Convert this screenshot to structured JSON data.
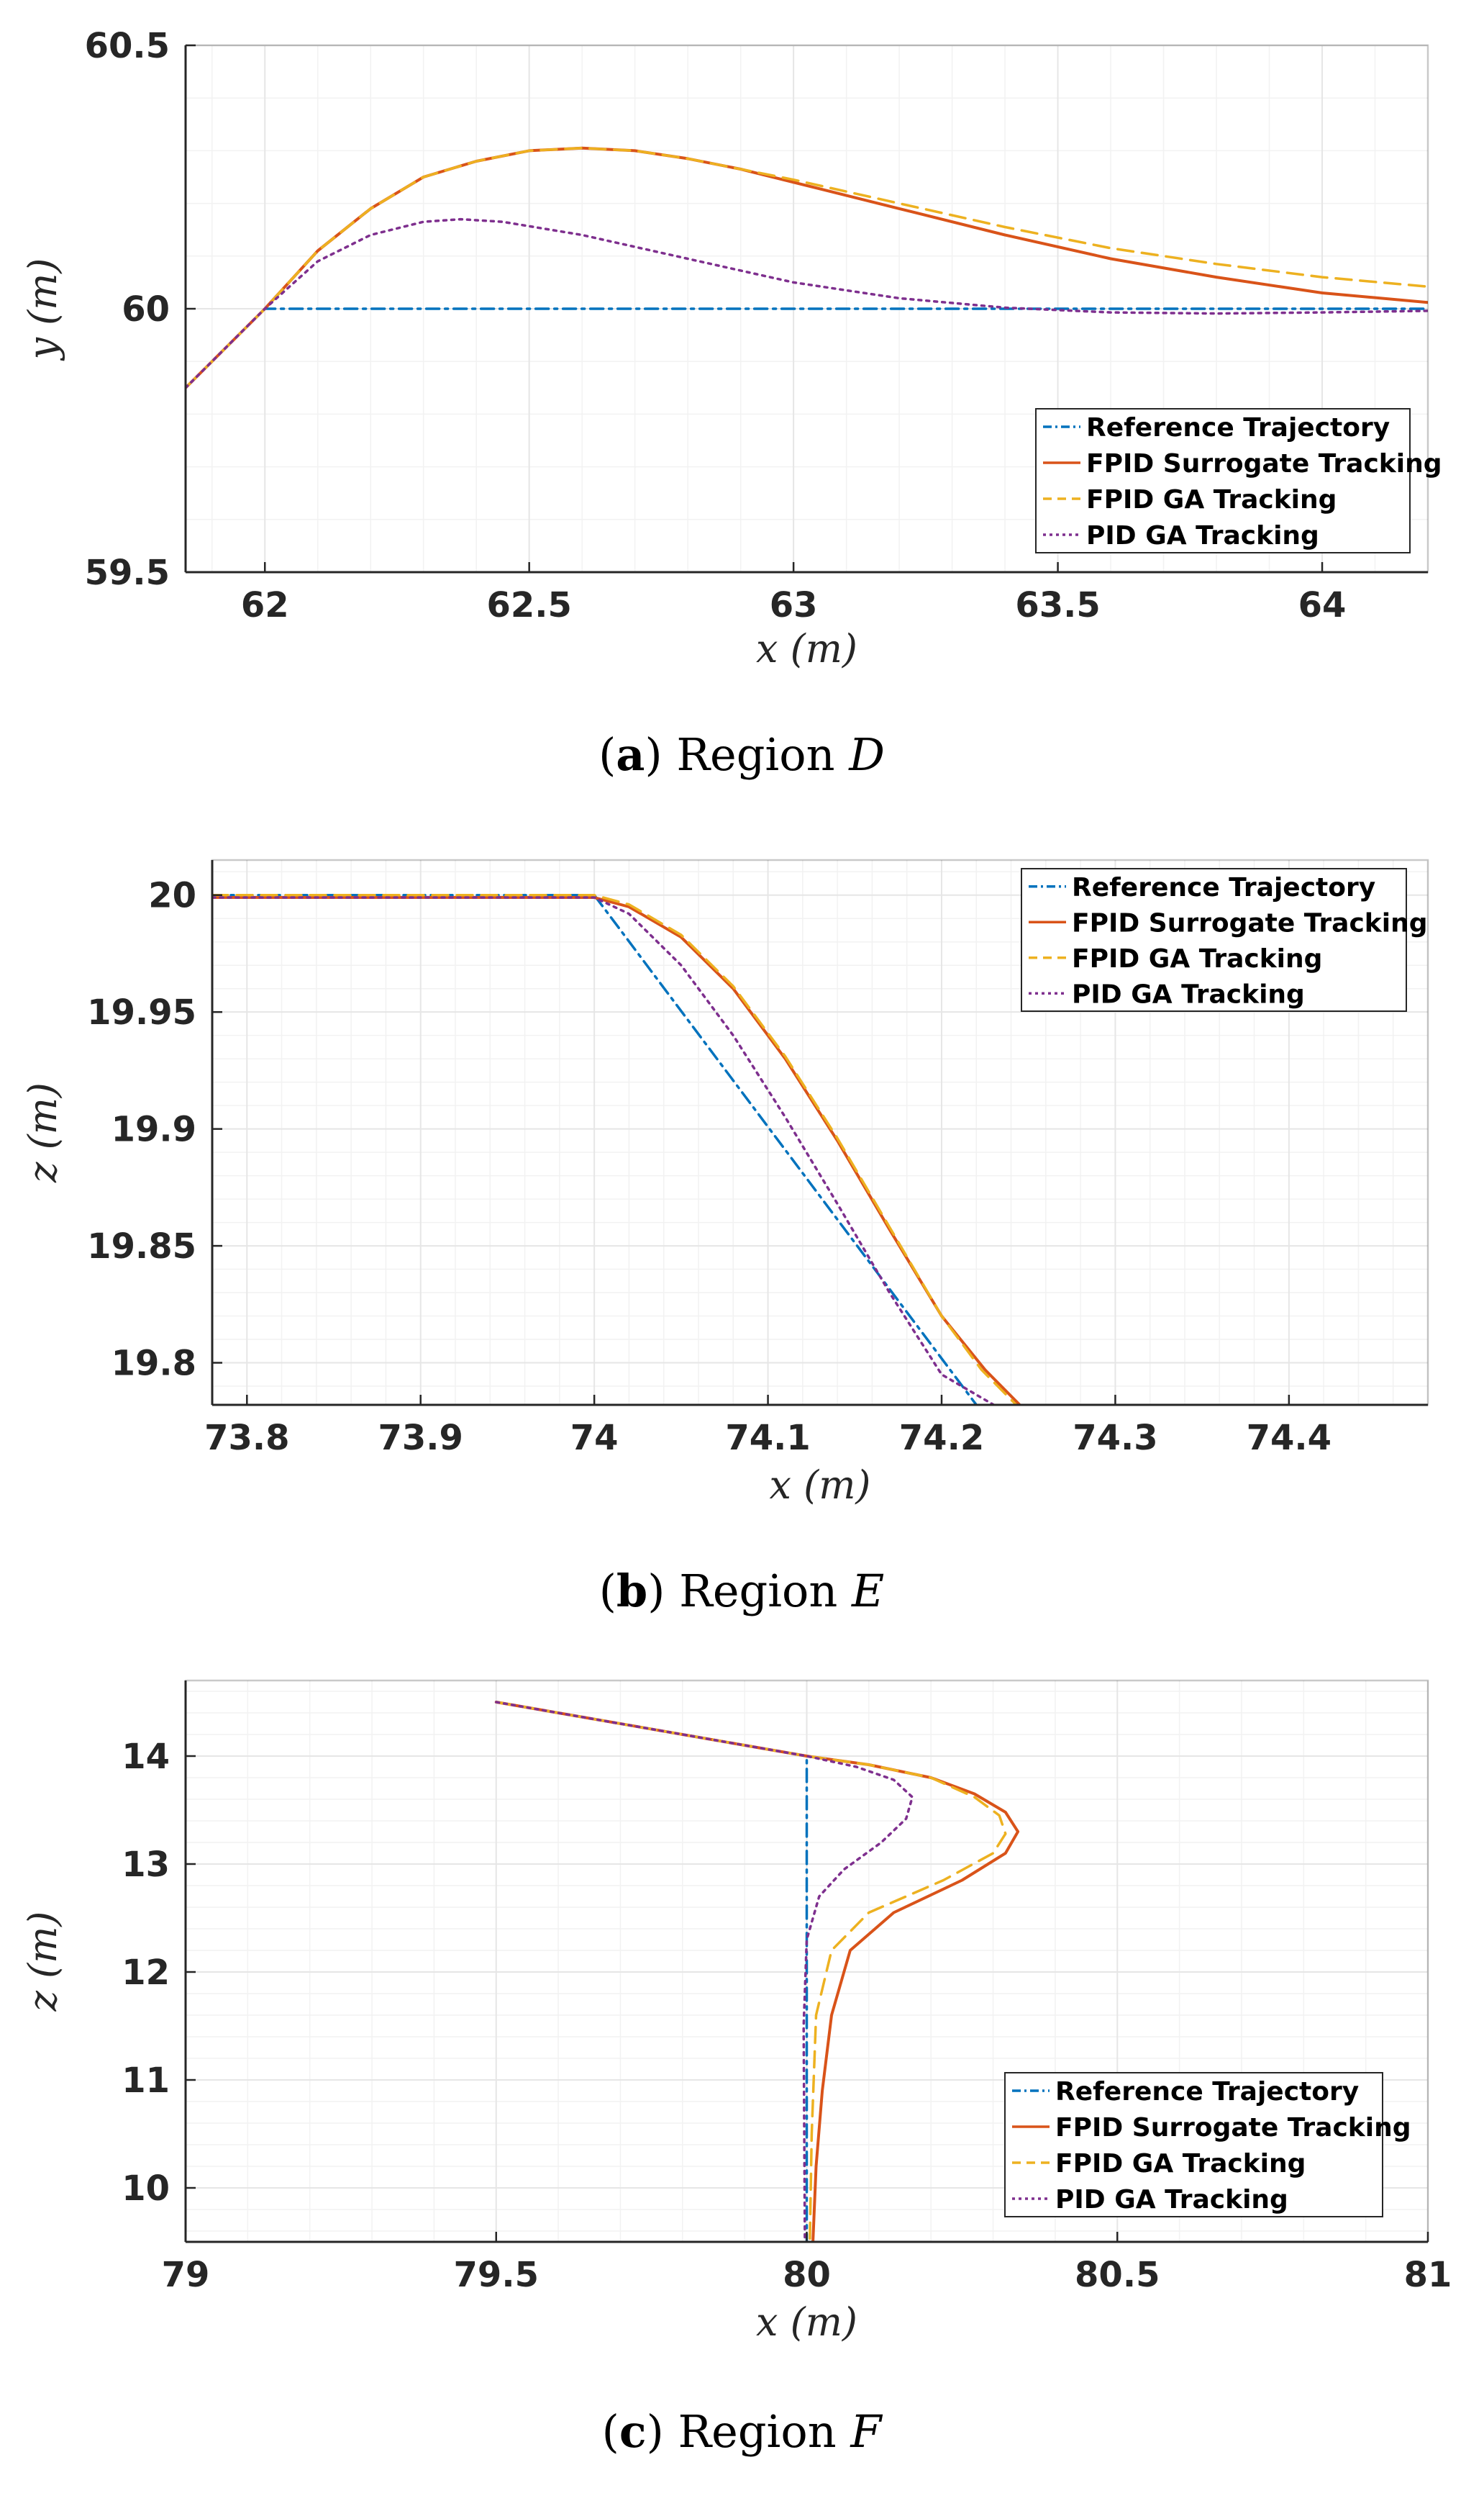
{
  "colors": {
    "reference": "#0072BD",
    "fpid_surrogate": "#D95319",
    "fpid_ga": "#EDB120",
    "pid_ga": "#7E2F8E"
  },
  "chart_data": [
    {
      "type": "line",
      "panel": "a",
      "caption_tag": "a",
      "caption_text": "Region",
      "caption_var": "D",
      "xlabel_var": "x",
      "ylabel_var": "y",
      "unit_var": "m",
      "xlim": [
        61.85,
        64.2
      ],
      "ylim": [
        59.5,
        60.5
      ],
      "xticks": [
        62,
        62.5,
        63,
        63.5,
        64
      ],
      "xtick_labels": [
        "62",
        "62.5",
        "63",
        "63.5",
        "64"
      ],
      "yticks": [
        59.5,
        60,
        60.5
      ],
      "ytick_labels": [
        "59.5",
        "60",
        "60.5"
      ],
      "legend_position": "bottom-right",
      "series": [
        {
          "name": "Reference Trajectory",
          "style": "dashdot",
          "color_key": "reference",
          "x": [
            61.85,
            62.0,
            64.2
          ],
          "y": [
            59.85,
            60.0,
            60.0
          ]
        },
        {
          "name": "FPID Surrogate Tracking",
          "style": "solid",
          "color_key": "fpid_surrogate",
          "x": [
            61.85,
            62.0,
            62.1,
            62.2,
            62.3,
            62.4,
            62.5,
            62.6,
            62.7,
            62.8,
            62.9,
            63.0,
            63.2,
            63.4,
            63.6,
            63.8,
            64.0,
            64.2
          ],
          "y": [
            59.85,
            60.0,
            60.11,
            60.19,
            60.25,
            60.28,
            60.3,
            60.305,
            60.3,
            60.285,
            60.265,
            60.24,
            60.19,
            60.14,
            60.095,
            60.06,
            60.03,
            60.012
          ]
        },
        {
          "name": "FPID GA Tracking",
          "style": "dashed",
          "color_key": "fpid_ga",
          "x": [
            61.85,
            62.0,
            62.1,
            62.2,
            62.3,
            62.4,
            62.5,
            62.6,
            62.7,
            62.8,
            62.9,
            63.0,
            63.2,
            63.4,
            63.6,
            63.8,
            64.0,
            64.2
          ],
          "y": [
            59.85,
            60.0,
            60.11,
            60.19,
            60.25,
            60.28,
            60.3,
            60.305,
            60.3,
            60.285,
            60.265,
            60.245,
            60.2,
            60.155,
            60.115,
            60.085,
            60.06,
            60.042
          ]
        },
        {
          "name": "PID GA Tracking",
          "style": "dotted",
          "color_key": "pid_ga",
          "x": [
            61.85,
            62.0,
            62.1,
            62.2,
            62.3,
            62.37,
            62.45,
            62.6,
            62.8,
            63.0,
            63.2,
            63.4,
            63.6,
            63.8,
            64.0,
            64.2
          ],
          "y": [
            59.85,
            60.0,
            60.09,
            60.14,
            60.165,
            60.17,
            60.165,
            60.14,
            60.095,
            60.05,
            60.02,
            60.002,
            59.993,
            59.991,
            59.993,
            59.996
          ]
        }
      ]
    },
    {
      "type": "line",
      "panel": "b",
      "caption_tag": "b",
      "caption_text": "Region",
      "caption_var": "E",
      "xlabel_var": "x",
      "ylabel_var": "z",
      "unit_var": "m",
      "xlim": [
        73.78,
        74.48
      ],
      "ylim": [
        19.782,
        20.015
      ],
      "xticks": [
        73.8,
        73.9,
        74.0,
        74.1,
        74.2,
        74.3,
        74.4
      ],
      "xtick_labels": [
        "73.8",
        "73.9",
        "74",
        "74.1",
        "74.2",
        "74.3",
        "74.4"
      ],
      "yticks": [
        19.8,
        19.85,
        19.9,
        19.95,
        20.0
      ],
      "ytick_labels": [
        "19.8",
        "19.85",
        "19.9",
        "19.95",
        "20"
      ],
      "legend_position": "top-right",
      "series": [
        {
          "name": "Reference Trajectory",
          "style": "dashdot",
          "color_key": "reference",
          "x": [
            73.78,
            74.0,
            74.22
          ],
          "y": [
            20.0,
            20.0,
            19.782
          ]
        },
        {
          "name": "FPID Surrogate Tracking",
          "style": "solid",
          "color_key": "fpid_surrogate",
          "x": [
            73.78,
            74.0,
            74.02,
            74.05,
            74.08,
            74.11,
            74.14,
            74.17,
            74.2,
            74.225,
            74.245
          ],
          "y": [
            19.999,
            19.999,
            19.995,
            19.982,
            19.96,
            19.93,
            19.895,
            19.857,
            19.82,
            19.797,
            19.782
          ]
        },
        {
          "name": "FPID GA Tracking",
          "style": "dashed",
          "color_key": "fpid_ga",
          "x": [
            73.78,
            74.0,
            74.02,
            74.05,
            74.08,
            74.11,
            74.14,
            74.17,
            74.2,
            74.223,
            74.243
          ],
          "y": [
            20.0,
            20.0,
            19.996,
            19.983,
            19.961,
            19.931,
            19.896,
            19.858,
            19.82,
            19.797,
            19.782
          ]
        },
        {
          "name": "PID GA Tracking",
          "style": "dotted",
          "color_key": "pid_ga",
          "x": [
            73.78,
            74.0,
            74.02,
            74.05,
            74.08,
            74.11,
            74.14,
            74.17,
            74.2,
            74.23
          ],
          "y": [
            19.999,
            19.999,
            19.992,
            19.97,
            19.94,
            19.905,
            19.868,
            19.83,
            19.795,
            19.782
          ]
        }
      ]
    },
    {
      "type": "line",
      "panel": "c",
      "caption_tag": "c",
      "caption_text": "Region",
      "caption_var": "F",
      "xlabel_var": "x",
      "ylabel_var": "z",
      "unit_var": "m",
      "xlim": [
        79.0,
        81.0
      ],
      "ylim": [
        9.5,
        14.7
      ],
      "xticks": [
        79,
        79.5,
        80,
        80.5,
        81
      ],
      "xtick_labels": [
        "79",
        "79.5",
        "80",
        "80.5",
        "81"
      ],
      "yticks": [
        10,
        11,
        12,
        13,
        14
      ],
      "ytick_labels": [
        "10",
        "11",
        "12",
        "13",
        "14"
      ],
      "legend_position": "bottom-right",
      "series": [
        {
          "name": "Reference Trajectory",
          "style": "dashdot",
          "color_key": "reference",
          "x": [
            79.5,
            80.0,
            80.0
          ],
          "y": [
            14.5,
            14.0,
            9.5
          ]
        },
        {
          "name": "FPID Surrogate Tracking",
          "style": "solid",
          "color_key": "fpid_surrogate",
          "x": [
            79.5,
            80.0,
            80.1,
            80.2,
            80.27,
            80.32,
            80.34,
            80.32,
            80.25,
            80.14,
            80.07,
            80.04,
            80.025,
            80.015,
            80.01
          ],
          "y": [
            14.5,
            14.0,
            13.92,
            13.8,
            13.65,
            13.48,
            13.3,
            13.1,
            12.85,
            12.55,
            12.2,
            11.6,
            10.9,
            10.2,
            9.5
          ]
        },
        {
          "name": "FPID GA Tracking",
          "style": "dashed",
          "color_key": "fpid_ga",
          "x": [
            79.5,
            80.0,
            80.1,
            80.2,
            80.27,
            80.31,
            80.32,
            80.3,
            80.22,
            80.1,
            80.04,
            80.015,
            80.008,
            80.005
          ],
          "y": [
            14.5,
            14.0,
            13.92,
            13.8,
            13.62,
            13.45,
            13.28,
            13.1,
            12.85,
            12.55,
            12.2,
            11.6,
            10.5,
            9.5
          ]
        },
        {
          "name": "PID GA Tracking",
          "style": "dotted",
          "color_key": "pid_ga",
          "x": [
            79.5,
            80.0,
            80.08,
            80.14,
            80.17,
            80.16,
            80.12,
            80.06,
            80.02,
            80.0,
            79.995,
            79.997
          ],
          "y": [
            14.5,
            14.0,
            13.9,
            13.78,
            13.62,
            13.42,
            13.2,
            12.95,
            12.7,
            12.3,
            11.5,
            9.5
          ]
        }
      ]
    }
  ]
}
